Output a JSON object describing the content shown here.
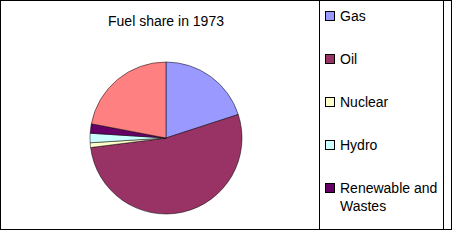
{
  "chart_data": {
    "type": "pie",
    "title": "Fuel share in 1973",
    "categories": [
      "Gas",
      "Oil",
      "Nuclear",
      "Hydro",
      "Renewable and Wastes",
      null
    ],
    "values": [
      20,
      53,
      1,
      2,
      2,
      22
    ],
    "colors": [
      "#9999ff",
      "#993366",
      "#ffffcc",
      "#ccffff",
      "#660066",
      "#ff8080"
    ],
    "legend": "right",
    "data_labels": false
  }
}
